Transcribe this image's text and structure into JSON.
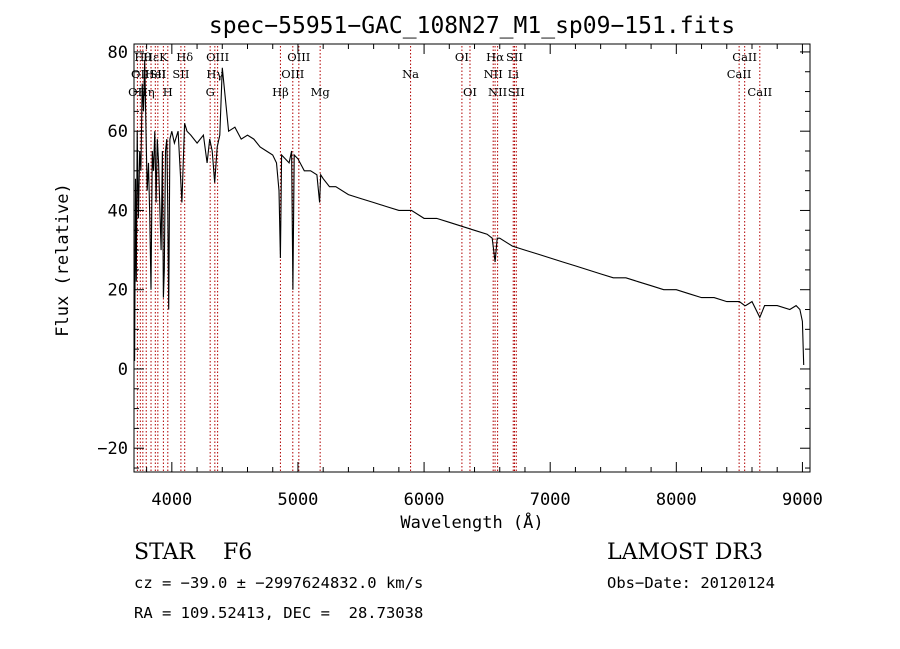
{
  "chart_data": {
    "type": "line",
    "title": "spec−55951−GAC_108N27_M1_sp09−151.fits",
    "xlabel": "Wavelength (Å)",
    "ylabel": "Flux (relative)",
    "xlim": [
      3700,
      9060
    ],
    "ylim": [
      -26,
      82
    ],
    "xticks": [
      4000,
      5000,
      6000,
      7000,
      8000,
      9000
    ],
    "xtick_labels": [
      "4000",
      "5000",
      "6000",
      "7000",
      "8000",
      "9000"
    ],
    "yticks": [
      -20,
      0,
      20,
      40,
      60,
      80
    ],
    "ytick_labels": [
      "−20",
      "0",
      "20",
      "40",
      "60",
      "80"
    ],
    "grid": false,
    "series": [
      {
        "name": "spectrum",
        "x": [
          3705,
          3712,
          3718,
          3725,
          3735,
          3745,
          3755,
          3765,
          3775,
          3785,
          3795,
          3805,
          3815,
          3825,
          3835,
          3845,
          3855,
          3865,
          3875,
          3885,
          3895,
          3905,
          3915,
          3925,
          3933,
          3940,
          3950,
          3960,
          3968,
          3975,
          3985,
          4000,
          4020,
          4050,
          4080,
          4101,
          4120,
          4150,
          4200,
          4250,
          4280,
          4300,
          4320,
          4340,
          4360,
          4380,
          4400,
          4450,
          4500,
          4550,
          4600,
          4650,
          4700,
          4750,
          4800,
          4830,
          4850,
          4861,
          4870,
          4900,
          4930,
          4950,
          4960,
          4970,
          5000,
          5050,
          5100,
          5150,
          5172,
          5180,
          5200,
          5250,
          5300,
          5400,
          5500,
          5600,
          5700,
          5800,
          5900,
          6000,
          6100,
          6200,
          6300,
          6400,
          6500,
          6540,
          6563,
          6580,
          6600,
          6700,
          6800,
          6900,
          7000,
          7100,
          7200,
          7300,
          7400,
          7500,
          7600,
          7700,
          7800,
          7900,
          8000,
          8100,
          8200,
          8300,
          8400,
          8500,
          8542,
          8550,
          8600,
          8662,
          8700,
          8800,
          8900,
          8950,
          8980,
          9000,
          9010
        ],
        "values": [
          2,
          48,
          22,
          60,
          38,
          55,
          50,
          72,
          65,
          78,
          60,
          45,
          52,
          38,
          20,
          55,
          50,
          60,
          42,
          58,
          52,
          40,
          30,
          55,
          18,
          25,
          55,
          58,
          40,
          15,
          58,
          60,
          57,
          60,
          42,
          62,
          60,
          59,
          57,
          59,
          52,
          58,
          55,
          47,
          56,
          59,
          76,
          60,
          61,
          58,
          59,
          58,
          56,
          55,
          54,
          52,
          45,
          28,
          54,
          53,
          52,
          55,
          20,
          54,
          53,
          50,
          50,
          49,
          42,
          49,
          48,
          46,
          46,
          44,
          43,
          42,
          41,
          40,
          40,
          38,
          38,
          37,
          36,
          35,
          34,
          33,
          27,
          33,
          33,
          31,
          30,
          29,
          28,
          27,
          26,
          25,
          24,
          23,
          23,
          22,
          21,
          20,
          20,
          19,
          18,
          18,
          17,
          17,
          16,
          16,
          17,
          13,
          16,
          16,
          15,
          16,
          15,
          12,
          1
        ]
      }
    ],
    "lines": [
      {
        "wavelength": 3727,
        "label": "OII",
        "row": 3
      },
      {
        "wavelength": 3750,
        "label": "OII",
        "row": 2
      },
      {
        "wavelength": 3770,
        "label": "Hθ",
        "row": 1
      },
      {
        "wavelength": 3797,
        "label": "Hη",
        "row": 3
      },
      {
        "wavelength": 3835,
        "label": "Hε",
        "row": 1
      },
      {
        "wavelength": 3869,
        "label": "HeI",
        "row": 2
      },
      {
        "wavelength": 3889,
        "label": "SII",
        "row": 2
      },
      {
        "wavelength": 3933,
        "label": "K",
        "row": 1
      },
      {
        "wavelength": 3968,
        "label": "H",
        "row": 3
      },
      {
        "wavelength": 4102,
        "label": "Hδ",
        "row": 1
      },
      {
        "wavelength": 4072,
        "label": "SII",
        "row": 2
      },
      {
        "wavelength": 4304,
        "label": "G",
        "row": 3
      },
      {
        "wavelength": 4341,
        "label": "Hγ",
        "row": 2
      },
      {
        "wavelength": 4363,
        "label": "OIII",
        "row": 1
      },
      {
        "wavelength": 4861,
        "label": "Hβ",
        "row": 3
      },
      {
        "wavelength": 4959,
        "label": "OIII",
        "row": 2
      },
      {
        "wavelength": 5007,
        "label": "OIII",
        "row": 1
      },
      {
        "wavelength": 5176,
        "label": "Mg",
        "row": 3
      },
      {
        "wavelength": 5893,
        "label": "Na",
        "row": 2
      },
      {
        "wavelength": 6300,
        "label": "OI",
        "row": 1
      },
      {
        "wavelength": 6364,
        "label": "OI",
        "row": 3
      },
      {
        "wavelength": 6548,
        "label": "NII",
        "row": 2
      },
      {
        "wavelength": 6563,
        "label": "Hα",
        "row": 1
      },
      {
        "wavelength": 6583,
        "label": "NII",
        "row": 3
      },
      {
        "wavelength": 6707,
        "label": "Li",
        "row": 2
      },
      {
        "wavelength": 6717,
        "label": "SII",
        "row": 1
      },
      {
        "wavelength": 6731,
        "label": "SII",
        "row": 3
      },
      {
        "wavelength": 8498,
        "label": "CaII",
        "row": 2
      },
      {
        "wavelength": 8542,
        "label": "CaII",
        "row": 1
      },
      {
        "wavelength": 8662,
        "label": "CaII",
        "row": 3
      }
    ]
  },
  "info": {
    "class_line": "STAR    F6",
    "survey": "LAMOST DR3",
    "cz_line": "cz = −39.0 ± −2997624832.0 km/s",
    "obs_date": "Obs−Date: 20120124",
    "radec_line": "RA = 109.52413, DEC =  28.73038"
  },
  "colors": {
    "spectrum": "#000000",
    "line_markers": "#b00000",
    "axes": "#000000",
    "background": "#ffffff"
  }
}
